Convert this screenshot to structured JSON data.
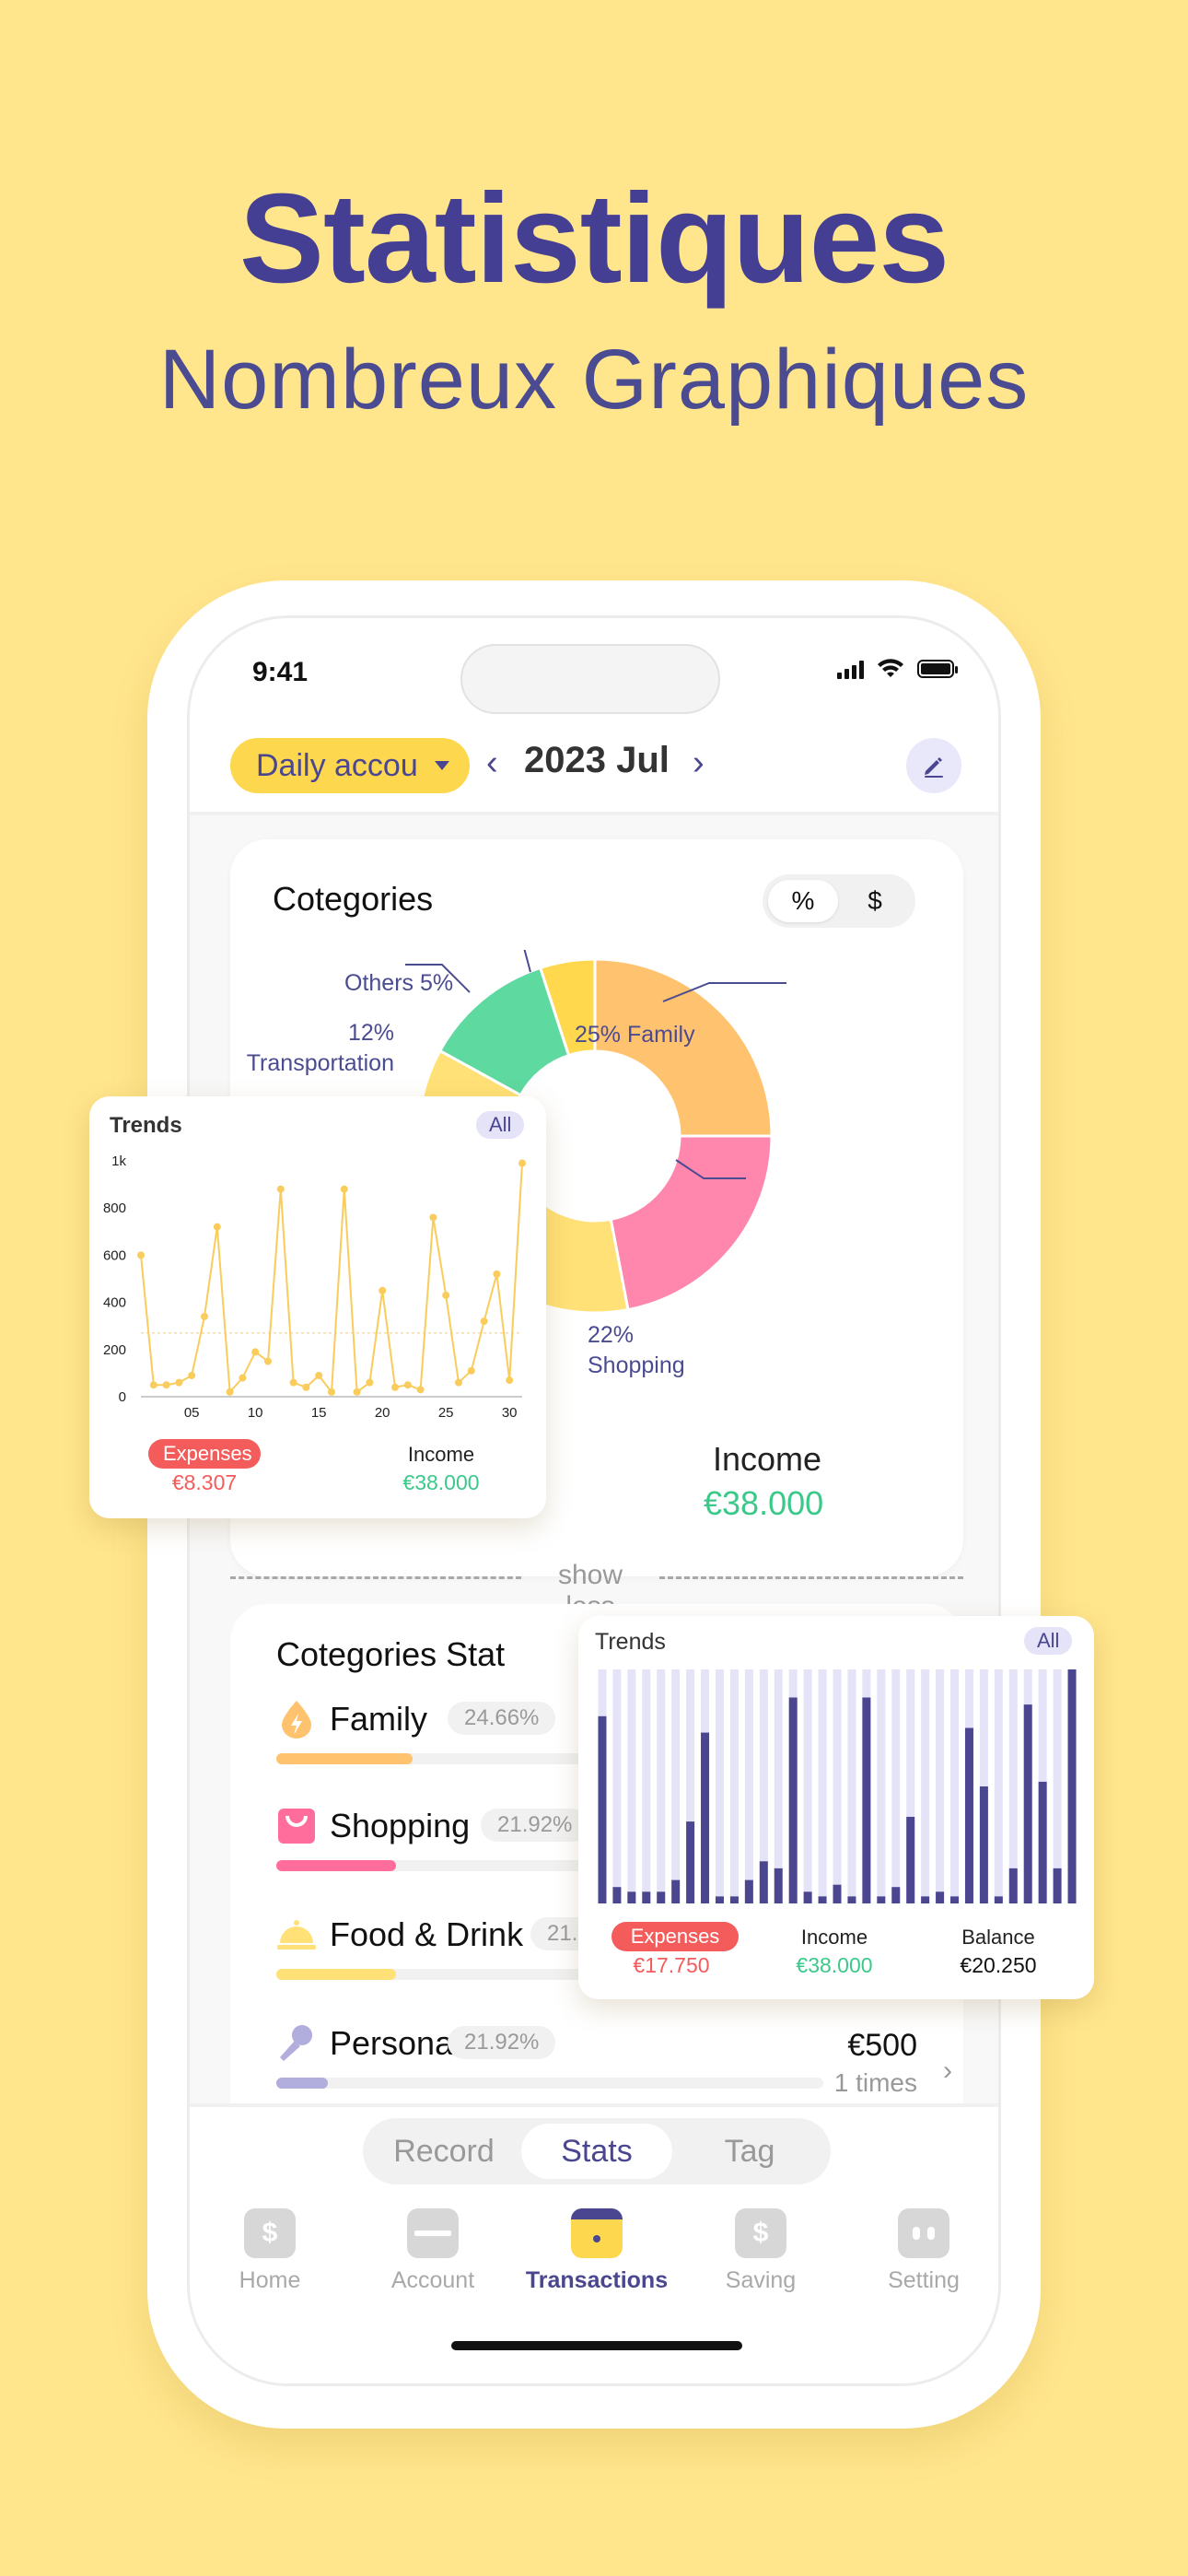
{
  "promo": {
    "title": "Statistiques",
    "subtitle": "Nombreux Graphiques"
  },
  "status_bar": {
    "time": "9:41"
  },
  "header": {
    "account_selector": "Daily accou",
    "month": "2023 Jul",
    "prev_icon": "chevron-left-icon",
    "next_icon": "chevron-right-icon",
    "edit_icon": "pencil-icon"
  },
  "categories_card": {
    "title": "Cotegories",
    "toggle": [
      "%",
      "$"
    ],
    "toggle_selected": "%",
    "income_label": "Income",
    "income_value": "€38.000",
    "show_less": "show less"
  },
  "chart_data": [
    {
      "type": "pie",
      "donut": true,
      "slices": [
        {
          "label_text": "25%",
          "label": "Family",
          "value": 25,
          "color": "#FFC26E"
        },
        {
          "label_text": "22%",
          "label": "Shopping",
          "value": 22,
          "color": "#FF86AC"
        },
        {
          "label_text": "",
          "label": "",
          "value": 36,
          "color": "#FFE177"
        },
        {
          "label_text": "12%",
          "label": "Transportation",
          "value": 12,
          "color": "#5ED9A0"
        },
        {
          "label_text": "Others 5%",
          "label": "",
          "value": 5,
          "color": "#FFD84E"
        }
      ]
    },
    {
      "type": "line",
      "title": "Trends",
      "x_ticks": [
        "05",
        "10",
        "15",
        "20",
        "25",
        "30"
      ],
      "y_ticks": [
        "0",
        "200",
        "400",
        "600",
        "800",
        "1k"
      ],
      "ylim": [
        0,
        1000
      ],
      "average_line": 270,
      "x": [
        1,
        2,
        3,
        4,
        5,
        6,
        7,
        8,
        9,
        10,
        11,
        12,
        13,
        14,
        15,
        16,
        17,
        18,
        19,
        20,
        21,
        22,
        23,
        24,
        25,
        26,
        27,
        28,
        29,
        30,
        31
      ],
      "values": [
        600,
        50,
        50,
        60,
        90,
        340,
        720,
        20,
        80,
        190,
        150,
        880,
        60,
        40,
        90,
        20,
        880,
        20,
        60,
        450,
        40,
        50,
        30,
        760,
        430,
        60,
        110,
        320,
        520,
        70,
        990
      ],
      "color": "#F9CC5C"
    },
    {
      "type": "bar",
      "title": "Trends",
      "values": [
        80,
        7,
        5,
        5,
        5,
        10,
        35,
        73,
        3,
        3,
        10,
        18,
        15,
        88,
        5,
        3,
        8,
        3,
        88,
        3,
        7,
        37,
        3,
        5,
        3,
        75,
        50,
        3,
        15,
        85,
        52,
        15,
        100
      ],
      "max_value": 100,
      "bar_color": "#4A4690",
      "track_color": "#E4E3F8"
    }
  ],
  "trends_line_card": {
    "title": "Trends",
    "filter": "All",
    "expenses_label": "Expenses",
    "expenses_value": "€8.307",
    "income_label": "Income",
    "income_value": "€38.000"
  },
  "trends_bar_card": {
    "title": "Trends",
    "filter": "All",
    "expenses_label": "Expenses",
    "expenses_value": "€17.750",
    "income_label": "Income",
    "income_value": "€38.000",
    "balance_label": "Balance",
    "balance_value": "€20.250"
  },
  "categories_stat": {
    "title": "Cotegories Stat",
    "items": [
      {
        "name": "Family",
        "percent": "24.66%",
        "fill": 0.25,
        "color": "#FFC26E",
        "icon": "drop-icon"
      },
      {
        "name": "Shopping",
        "percent": "21.92%",
        "fill": 0.22,
        "color": "#FF6D9C",
        "icon": "shopping-bag-icon"
      },
      {
        "name": "Food & Drink",
        "percent": "21.9",
        "fill": 0.22,
        "color": "#FFE177",
        "icon": "cloche-icon"
      },
      {
        "name": "Personal",
        "percent": "21.92%",
        "amount": "€500",
        "times": "1 times",
        "fill": 0.05,
        "color": "#B1ADDD",
        "icon": "microphone-icon"
      }
    ]
  },
  "segment": {
    "options": [
      "Record",
      "Stats",
      "Tag"
    ],
    "selected": "Stats"
  },
  "tabbar": {
    "items": [
      {
        "label": "Home",
        "icon": "wallet-icon"
      },
      {
        "label": "Account",
        "icon": "card-icon"
      },
      {
        "label": "Transactions",
        "icon": "calendar-icon"
      },
      {
        "label": "Saving",
        "icon": "piggy-icon"
      },
      {
        "label": "Setting",
        "icon": "robot-icon"
      }
    ],
    "selected": "Transactions"
  },
  "colors": {
    "background": "#FFE58C",
    "accent": "#4A4690",
    "expense": "#F45B5B",
    "income": "#3BC98A"
  }
}
